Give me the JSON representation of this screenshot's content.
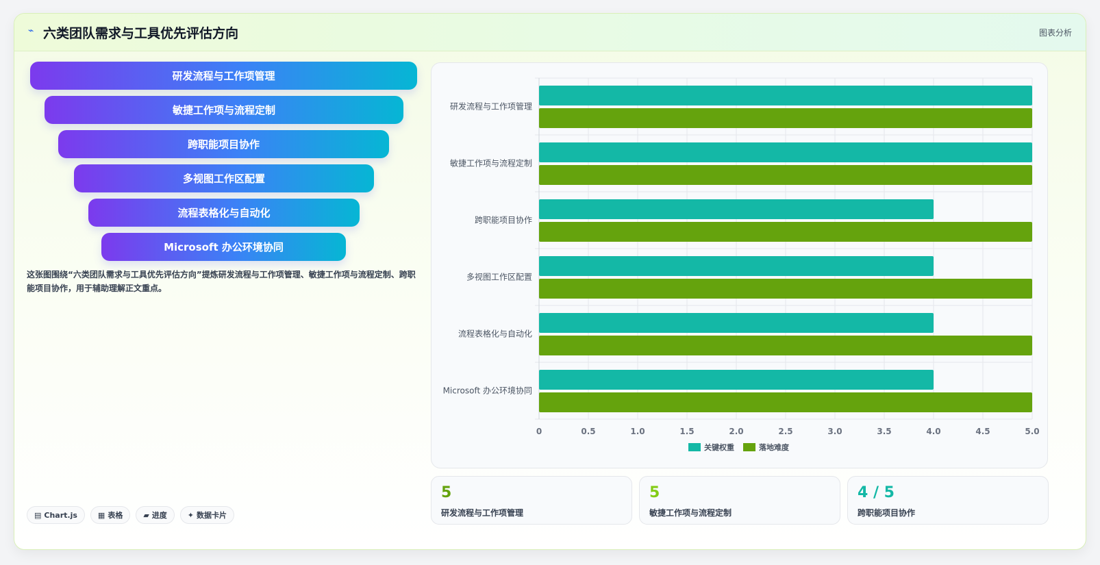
{
  "header": {
    "icon": "lightning-icon",
    "title": "六类团队需求与工具优先评估方向",
    "badge": "图表分析"
  },
  "funnel": {
    "steps": [
      "研发流程与工作项管理",
      "敏捷工作项与流程定制",
      "跨职能项目协作",
      "多视图工作区配置",
      "流程表格化与自动化",
      "Microsoft 办公环境协同"
    ]
  },
  "description": "这张图围绕“六类团队需求与工具优先评估方向”提炼研发流程与工作项管理、敏捷工作项与流程定制、跨职能项目协作，用于辅助理解正文重点。",
  "tags": [
    {
      "icon": "chart-icon",
      "glyph": "▤",
      "label": "Chart.js"
    },
    {
      "icon": "table-icon",
      "glyph": "▦",
      "label": "表格"
    },
    {
      "icon": "progress-icon",
      "glyph": "▰",
      "label": "进度"
    },
    {
      "icon": "sparkle-icon",
      "glyph": "✦",
      "label": "数据卡片"
    }
  ],
  "stats": [
    {
      "value": "5",
      "label": "研发流程与工作项管理",
      "color": "#65a30d"
    },
    {
      "value": "5",
      "label": "敏捷工作项与流程定制",
      "color": "#84cc16"
    },
    {
      "value": "4 / 5",
      "label": "跨职能项目协作",
      "color": "#14b8a6"
    }
  ],
  "chart_data": {
    "type": "bar",
    "orientation": "horizontal",
    "categories": [
      "研发流程与工作项管理",
      "敏捷工作项与流程定制",
      "跨职能项目协作",
      "多视图工作区配置",
      "流程表格化与自动化",
      "Microsoft 办公环境协同"
    ],
    "series": [
      {
        "name": "关键权重",
        "values": [
          5,
          5,
          4,
          4,
          4,
          4
        ],
        "color": "#14b8a6"
      },
      {
        "name": "落地难度",
        "values": [
          5,
          5,
          5,
          5,
          5,
          5
        ],
        "color": "#65a30d"
      }
    ],
    "xlim": [
      0,
      5
    ],
    "xticks": [
      "0",
      "0.5",
      "1.0",
      "1.5",
      "2.0",
      "2.5",
      "3.0",
      "3.5",
      "4.0",
      "4.5",
      "5.0"
    ],
    "grid": true,
    "legend": "bottom"
  }
}
